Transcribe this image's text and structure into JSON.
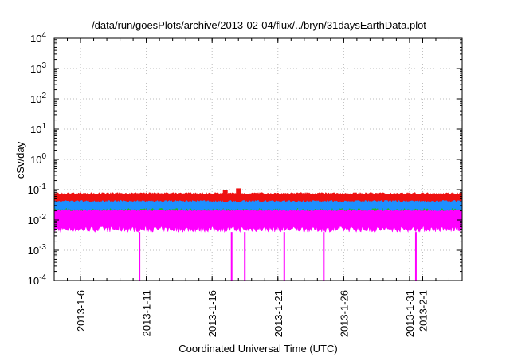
{
  "chart_data": {
    "type": "line",
    "title": "/data/run/goesPlots/archive/2013-02-04/flux/../bryn/31daysEarthData.plot",
    "xlabel": "Coordinated Universal Time (UTC)",
    "ylabel": "cSv/day",
    "yscale": "log",
    "ylim": [
      0.0001,
      10000
    ],
    "ytick_labels": [
      {
        "base": "10",
        "exp": "-4"
      },
      {
        "base": "10",
        "exp": "-3"
      },
      {
        "base": "10",
        "exp": "-2"
      },
      {
        "base": "10",
        "exp": "-1"
      },
      {
        "base": "10",
        "exp": "0"
      },
      {
        "base": "10",
        "exp": "1"
      },
      {
        "base": "10",
        "exp": "2"
      },
      {
        "base": "10",
        "exp": "3"
      },
      {
        "base": "10",
        "exp": "4"
      }
    ],
    "xlim": [
      "2013-01-04",
      "2013-02-04"
    ],
    "xtick_labels": [
      "2013-1-6",
      "2013-1-11",
      "2013-1-16",
      "2013-1-21",
      "2013-1-26",
      "2013-1-31",
      "2013-2-1"
    ],
    "grid": true,
    "legend": "none",
    "series": [
      {
        "color": "#ee1111",
        "range": [
          0.04,
          0.08
        ],
        "spikes": [
          {
            "x": "2013-01-18",
            "y": 0.11
          },
          {
            "x": "2013-01-17",
            "y": 0.1
          }
        ]
      },
      {
        "color": "#1e90ff",
        "range": [
          0.02,
          0.06
        ]
      },
      {
        "color": "#22bb22",
        "range": [
          0.02,
          0.04
        ]
      },
      {
        "color": "#ff00ff",
        "range": [
          0.004,
          0.03
        ],
        "dropouts": [
          "2013-01-10",
          "2013-01-17",
          "2013-01-18",
          "2013-01-21",
          "2013-01-24",
          "2013-01-31"
        ]
      }
    ]
  }
}
